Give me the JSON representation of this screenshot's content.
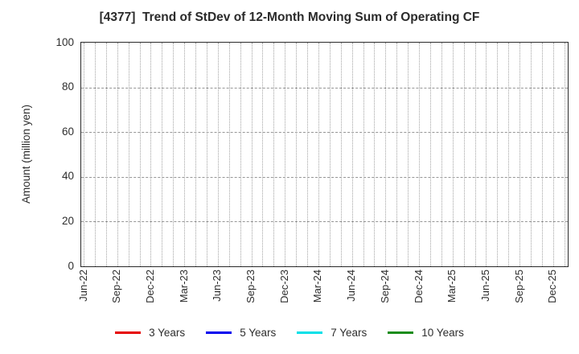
{
  "title": "[4377]  Trend of StDev of 12-Month Moving Sum of Operating CF",
  "chart_data": {
    "type": "line",
    "title": "[4377]  Trend of StDev of 12-Month Moving Sum of Operating CF",
    "xlabel": "",
    "ylabel": "Amount (million yen)",
    "ylim": [
      0,
      100
    ],
    "y_ticks": [
      0,
      20,
      40,
      60,
      80,
      100
    ],
    "y_gridlines": [
      20,
      40,
      60,
      80
    ],
    "x_tick_labels": [
      "Jun-22",
      "Sep-22",
      "Dec-22",
      "Mar-23",
      "Jun-23",
      "Sep-23",
      "Dec-23",
      "Mar-24",
      "Jun-24",
      "Sep-24",
      "Dec-24",
      "Mar-25",
      "Jun-25",
      "Sep-25",
      "Dec-25"
    ],
    "months_per_labeled_tick": 3,
    "total_month_gridlines": 44,
    "grid": true,
    "legend_position": "bottom",
    "series": [
      {
        "name": "3 Years",
        "color": "#e60000",
        "values": []
      },
      {
        "name": "5 Years",
        "color": "#0000ee",
        "values": []
      },
      {
        "name": "7 Years",
        "color": "#00e0e8",
        "values": []
      },
      {
        "name": "10 Years",
        "color": "#1a8c1a",
        "values": []
      }
    ],
    "plotted_points": "none (empty plot area, no data drawn)"
  }
}
